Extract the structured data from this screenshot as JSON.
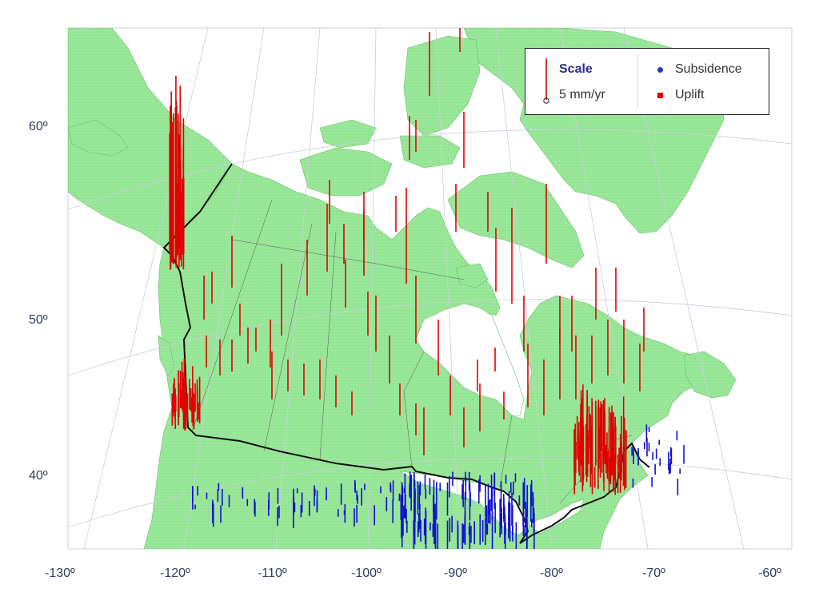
{
  "map": {
    "lat_labels": [
      "60º",
      "50º",
      "40º"
    ],
    "lon_labels": [
      "-130º",
      "-120º",
      "-110º",
      "-100º",
      "-90º",
      "-80º",
      "-70º",
      "-60º"
    ],
    "colors": {
      "land": "#9ae89a",
      "land_grid": "#7fcf7f",
      "water": "#ffffff",
      "uplift": "#e00000",
      "subsidence": "#1010d0",
      "graticule": "#c7cfdc",
      "border": "#111111",
      "province_lines": "#555555"
    }
  },
  "legend": {
    "scale_title": "Scale",
    "scale_value": "5 mm/yr",
    "subsidence_label": "Subsidence",
    "uplift_label": "Uplift"
  }
}
